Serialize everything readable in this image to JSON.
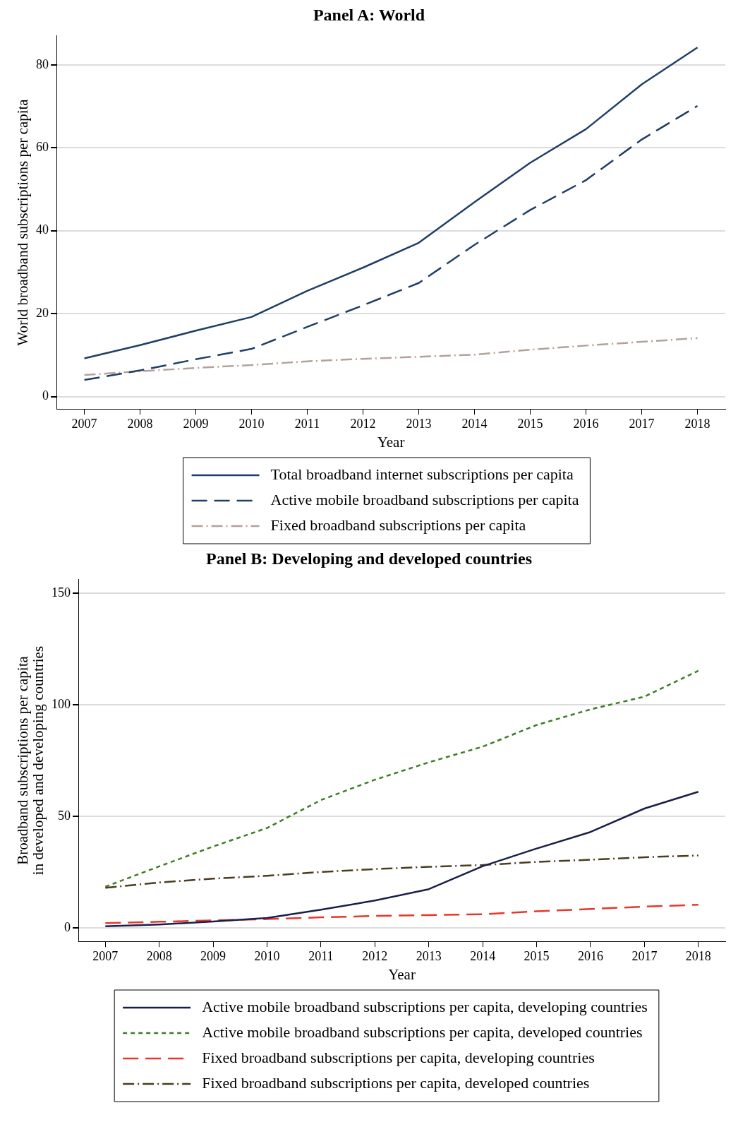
{
  "chart_data": [
    {
      "type": "line",
      "title": "Panel A: World",
      "xlabel": "Year",
      "ylabel": "World broadband subscriptions per capita",
      "categories": [
        "2007",
        "2008",
        "2009",
        "2010",
        "2011",
        "2012",
        "2013",
        "2014",
        "2015",
        "2016",
        "2017",
        "2018"
      ],
      "ylim": [
        -3,
        87
      ],
      "yticks": [
        0,
        20,
        40,
        60,
        80
      ],
      "grid": "y",
      "legend": "bottom",
      "marker": "none",
      "series": [
        {
          "name": "Total broadband internet subscriptions per capita",
          "color": "#1f3f66",
          "line_style": "solid",
          "values": [
            9.2,
            12.4,
            15.9,
            19.2,
            25.5,
            31.1,
            37.1,
            46.9,
            56.4,
            64.5,
            75.3,
            84.2
          ]
        },
        {
          "name": "Active mobile broadband subscriptions per capita",
          "color": "#1f3f66",
          "line_style": "dashed",
          "values": [
            4.0,
            6.3,
            9.0,
            11.5,
            16.8,
            22.0,
            27.4,
            36.6,
            45.0,
            52.2,
            62.0,
            70.1
          ]
        },
        {
          "name": "Fixed broadband subscriptions per capita",
          "color": "#b5a09a",
          "line_style": "dashdot",
          "values": [
            5.2,
            6.1,
            6.9,
            7.6,
            8.5,
            9.1,
            9.6,
            10.1,
            11.3,
            12.3,
            13.2,
            14.1
          ]
        }
      ]
    },
    {
      "type": "line",
      "title": "Panel B: Developing and developed countries",
      "xlabel": "Year",
      "ylabel": "Broadband subscriptions per capita\nin developed and developing countries",
      "categories": [
        "2007",
        "2008",
        "2009",
        "2010",
        "2011",
        "2012",
        "2013",
        "2014",
        "2015",
        "2016",
        "2017",
        "2018"
      ],
      "ylim": [
        -6,
        156
      ],
      "yticks": [
        0,
        50,
        100,
        150
      ],
      "grid": "y",
      "legend": "bottom",
      "marker": "none",
      "series": [
        {
          "name": "Active mobile broadband subscriptions per capita, developing countries",
          "color": "#1a1f4a",
          "line_style": "solid",
          "values": [
            0.8,
            1.6,
            2.9,
            4.5,
            8.2,
            12.3,
            17.4,
            27.7,
            35.6,
            43.0,
            53.5,
            61.0
          ]
        },
        {
          "name": "Active mobile broadband subscriptions per capita, developed countries",
          "color": "#3a7d23",
          "line_style": "dotted",
          "values": [
            18.5,
            27.6,
            36.5,
            44.8,
            57.3,
            66.4,
            74.2,
            81.2,
            90.9,
            97.9,
            103.6,
            115.2
          ]
        },
        {
          "name": "Fixed broadband subscriptions per capita, developing countries",
          "color": "#e8372a",
          "line_style": "dashed",
          "values": [
            2.2,
            2.8,
            3.4,
            4.0,
            4.8,
            5.4,
            5.8,
            6.2,
            7.5,
            8.5,
            9.6,
            10.4
          ]
        },
        {
          "name": "Fixed broadband subscriptions per capita, developed countries",
          "color": "#4d3b1f",
          "line_style": "dashdot",
          "values": [
            18.0,
            20.4,
            22.1,
            23.4,
            25.1,
            26.4,
            27.4,
            28.2,
            29.6,
            30.6,
            31.7,
            32.5
          ]
        }
      ]
    }
  ]
}
